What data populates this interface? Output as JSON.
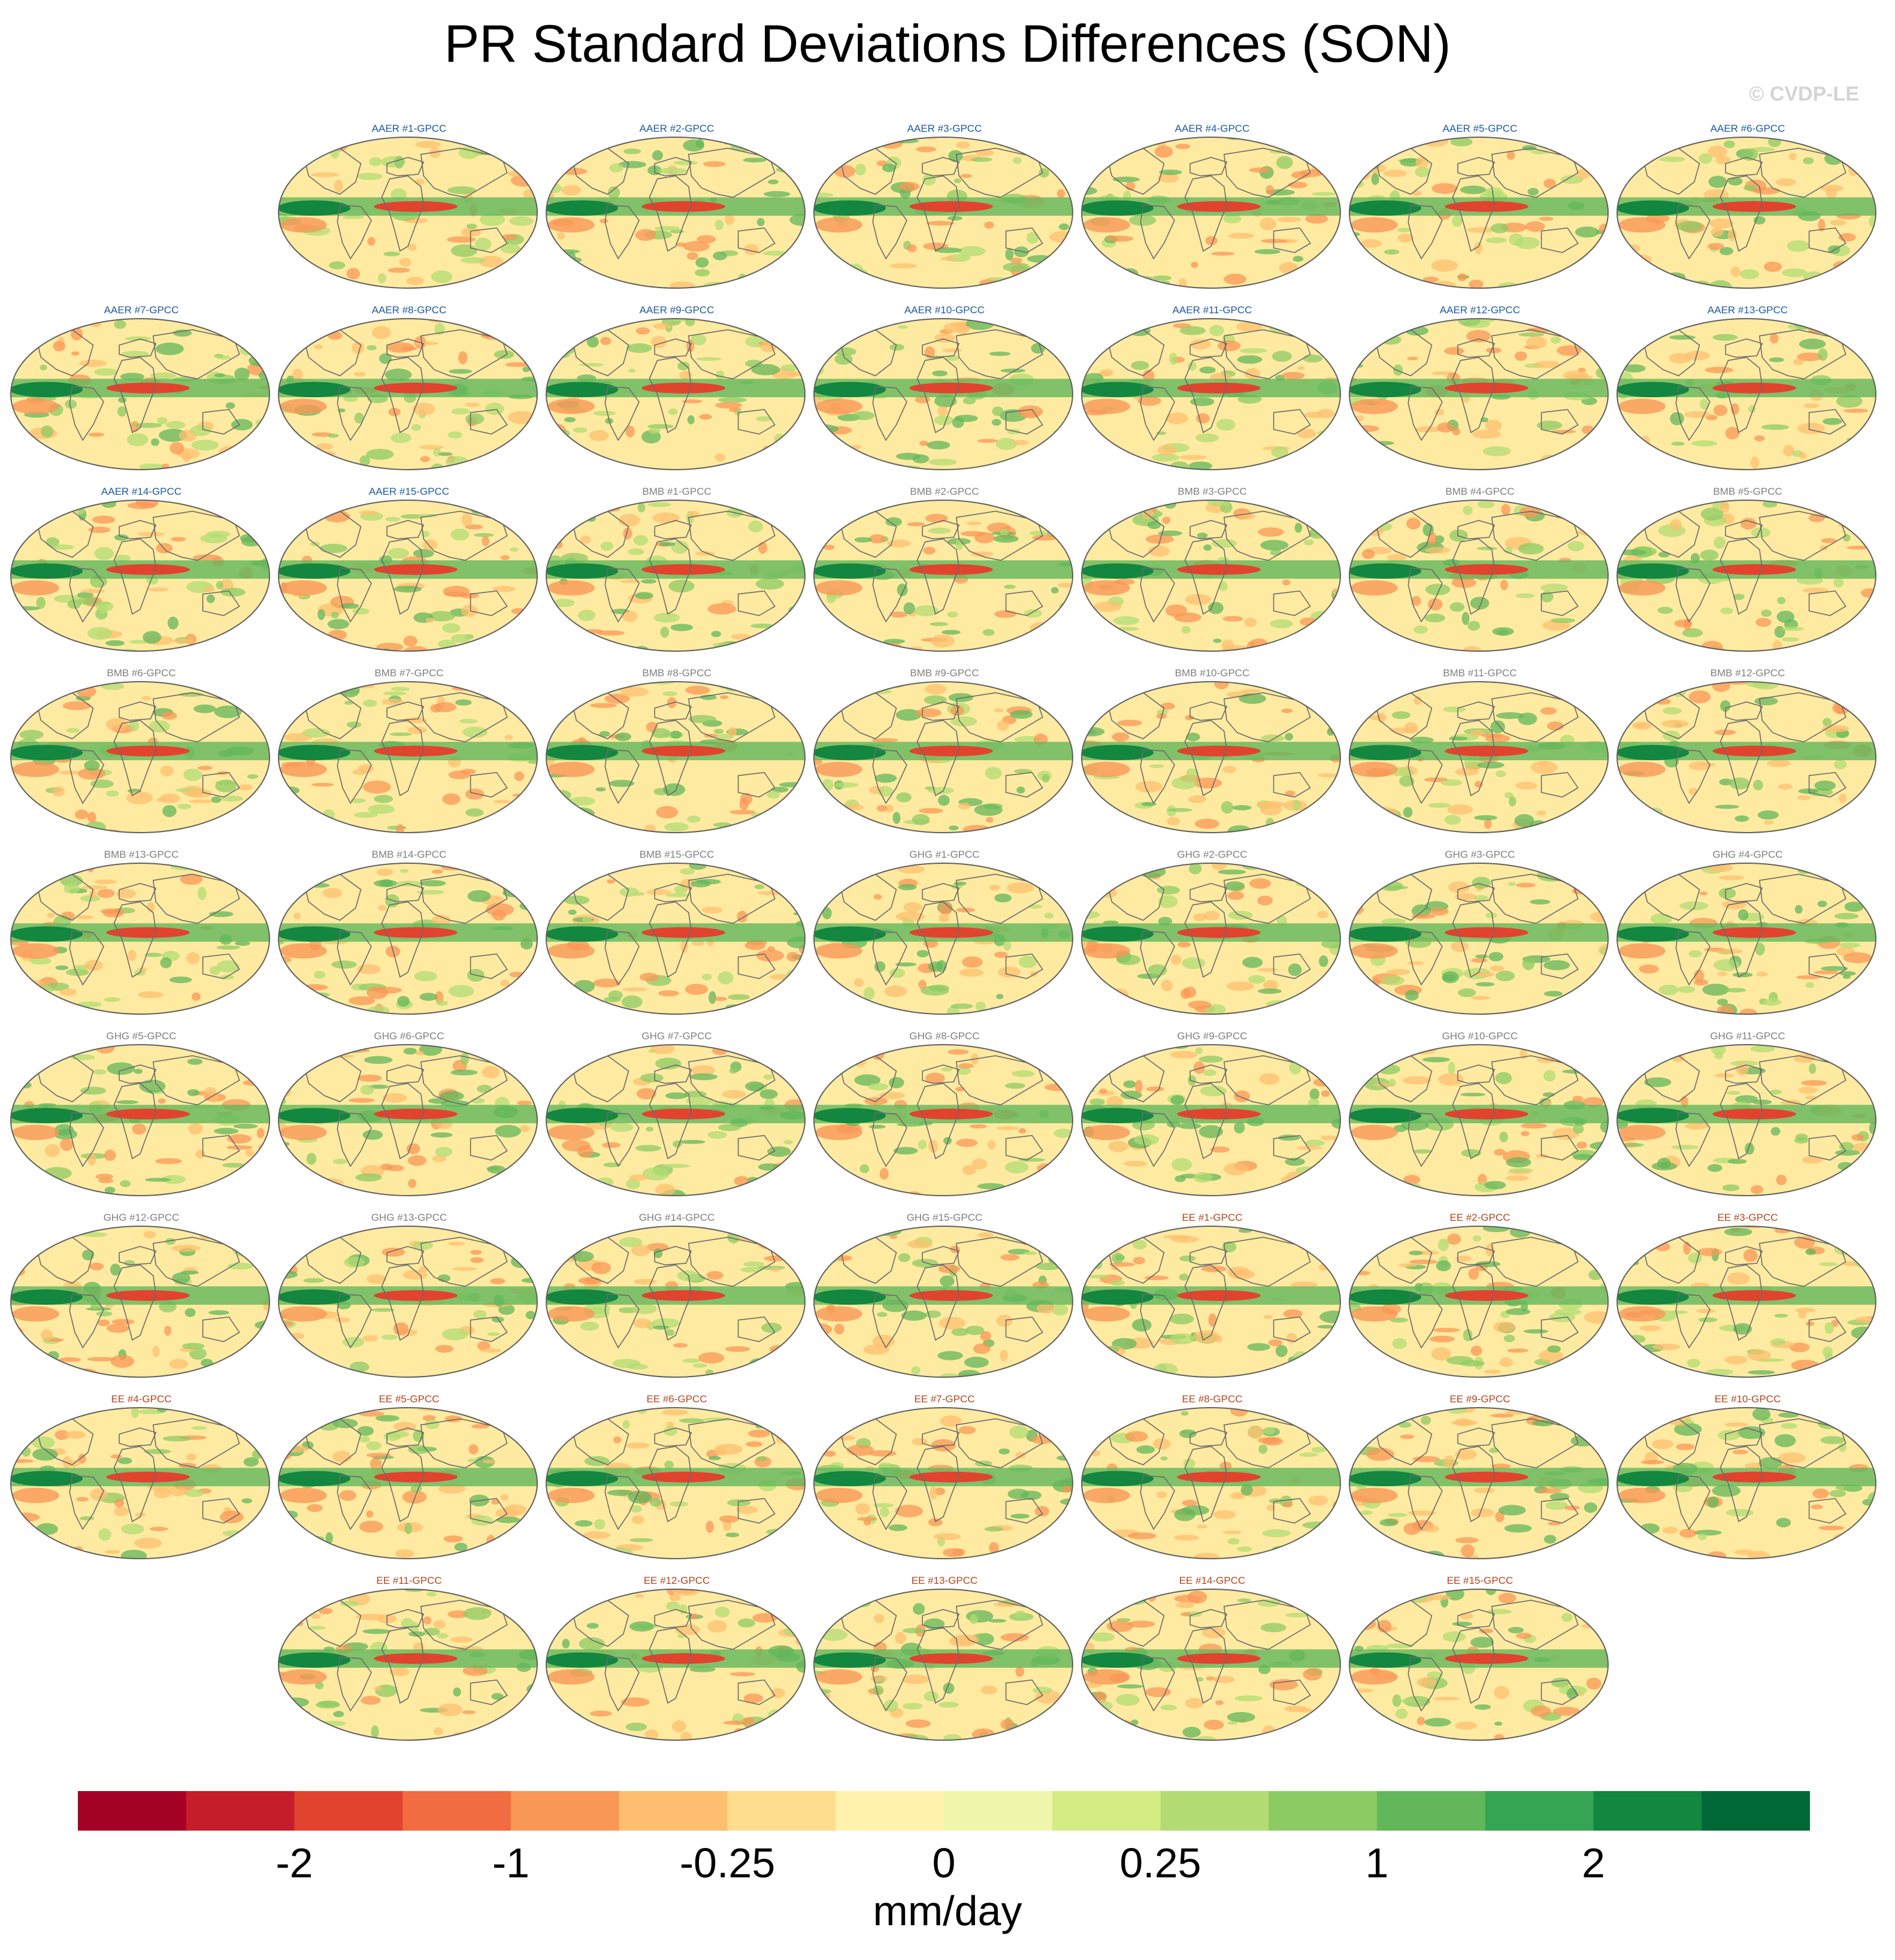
{
  "title": "PR Standard Deviations Differences (SON)",
  "copyright": "© CVDP-LE",
  "group_colors": {
    "AAER": "#1c5aa0",
    "BMB": "#7f7f7f",
    "GHG": "#7f7f7f",
    "EE": "#b5451b"
  },
  "panels": [
    "AAER #1-GPCC",
    "AAER #2-GPCC",
    "AAER #3-GPCC",
    "AAER #4-GPCC",
    "AAER #5-GPCC",
    "AAER #6-GPCC",
    "AAER #7-GPCC",
    "AAER #8-GPCC",
    "AAER #9-GPCC",
    "AAER #10-GPCC",
    "AAER #11-GPCC",
    "AAER #12-GPCC",
    "AAER #13-GPCC",
    "AAER #14-GPCC",
    "AAER #15-GPCC",
    "BMB #1-GPCC",
    "BMB #2-GPCC",
    "BMB #3-GPCC",
    "BMB #4-GPCC",
    "BMB #5-GPCC",
    "BMB #6-GPCC",
    "BMB #7-GPCC",
    "BMB #8-GPCC",
    "BMB #9-GPCC",
    "BMB #10-GPCC",
    "BMB #11-GPCC",
    "BMB #12-GPCC",
    "BMB #13-GPCC",
    "BMB #14-GPCC",
    "BMB #15-GPCC",
    "GHG #1-GPCC",
    "GHG #2-GPCC",
    "GHG #3-GPCC",
    "GHG #4-GPCC",
    "GHG #5-GPCC",
    "GHG #6-GPCC",
    "GHG #7-GPCC",
    "GHG #8-GPCC",
    "GHG #9-GPCC",
    "GHG #10-GPCC",
    "GHG #11-GPCC",
    "GHG #12-GPCC",
    "GHG #13-GPCC",
    "GHG #14-GPCC",
    "GHG #15-GPCC",
    "EE #1-GPCC",
    "EE #2-GPCC",
    "EE #3-GPCC",
    "EE #4-GPCC",
    "EE #5-GPCC",
    "EE #6-GPCC",
    "EE #7-GPCC",
    "EE #8-GPCC",
    "EE #9-GPCC",
    "EE #10-GPCC",
    "EE #11-GPCC",
    "EE #12-GPCC",
    "EE #13-GPCC",
    "EE #14-GPCC",
    "EE #15-GPCC"
  ],
  "colorbar": {
    "colors": [
      "#a50026",
      "#c61d2a",
      "#e2432e",
      "#f16c41",
      "#f99757",
      "#fdbf6f",
      "#fedd8d",
      "#fff2ac",
      "#f0f7ac",
      "#d5ec85",
      "#b2dc73",
      "#8ccb64",
      "#62b75b",
      "#36a553",
      "#138640",
      "#006837"
    ],
    "tick_labels": [
      "-2",
      "-1",
      "-0.25",
      "0",
      "0.25",
      "1",
      "2"
    ],
    "units": "mm/day"
  },
  "map_colors": {
    "background": "#feeaa0",
    "ocean_edge": "#606060",
    "coastline": "#6b6b6b"
  }
}
